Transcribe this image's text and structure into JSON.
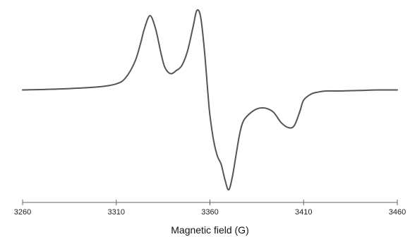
{
  "chart_data": {
    "type": "line",
    "title": "",
    "xlabel": "Magnetic field (G)",
    "ylabel": "",
    "xlim": [
      3260,
      3460
    ],
    "ylim": [
      -1.0,
      0.8
    ],
    "grid": false,
    "legend": "none",
    "x_ticks": [
      3260,
      3310,
      3360,
      3410,
      3460
    ],
    "line_color": "#555555",
    "series": [
      {
        "name": "",
        "x": [
          3260,
          3280,
          3300,
          3310,
          3315,
          3320,
          3323,
          3325,
          3328,
          3331,
          3334,
          3336,
          3339,
          3342,
          3345,
          3348,
          3351,
          3353,
          3355,
          3357,
          3359,
          3360,
          3362,
          3364,
          3366,
          3368,
          3370,
          3372,
          3374,
          3376,
          3378,
          3382,
          3386,
          3390,
          3394,
          3398,
          3402,
          3405,
          3408,
          3410,
          3414,
          3418,
          3422,
          3430,
          3440,
          3450,
          3460
        ],
        "values": [
          0.0,
          0.01,
          0.03,
          0.06,
          0.12,
          0.28,
          0.46,
          0.6,
          0.73,
          0.6,
          0.35,
          0.22,
          0.16,
          0.19,
          0.24,
          0.38,
          0.62,
          0.78,
          0.72,
          0.4,
          -0.05,
          -0.25,
          -0.5,
          -0.65,
          -0.73,
          -0.88,
          -0.98,
          -0.85,
          -0.63,
          -0.42,
          -0.3,
          -0.22,
          -0.18,
          -0.18,
          -0.22,
          -0.32,
          -0.37,
          -0.35,
          -0.21,
          -0.1,
          -0.04,
          -0.02,
          -0.01,
          -0.01,
          -0.005,
          0.0,
          0.0
        ]
      }
    ]
  }
}
